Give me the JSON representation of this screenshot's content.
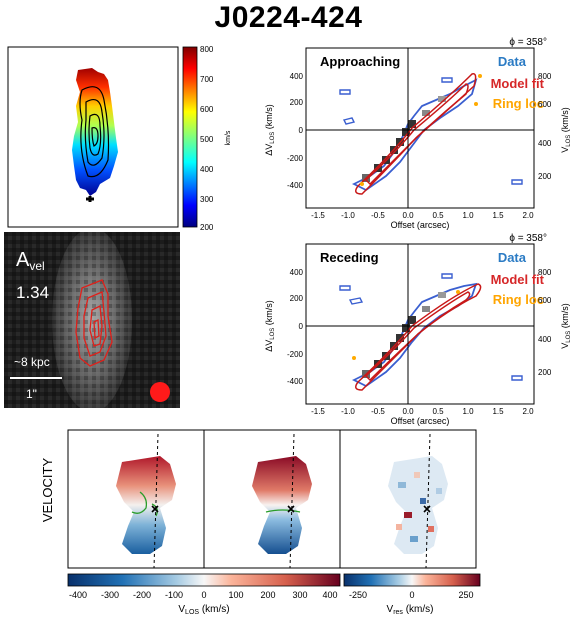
{
  "title": "J0224-424",
  "velocity_map": {
    "colorbar_ticks": [
      "800",
      "700",
      "600",
      "500",
      "400",
      "300",
      "200"
    ],
    "colorbar_unit": "km/s"
  },
  "image_panel": {
    "label_main": "A",
    "label_sub": "vel",
    "value": "1.34",
    "scale_kpc": "~8 kpc",
    "scale_arcsec": "1\""
  },
  "pv_panels": [
    {
      "phi": "ϕ = 358°",
      "name": "Approaching",
      "legend": [
        "Data",
        "Model fit",
        "Ring loc"
      ],
      "y_ticks": [
        "400",
        "200",
        "0",
        "-200",
        "-400"
      ],
      "y2_ticks": [
        "800",
        "600",
        "400",
        "200"
      ],
      "x_ticks": [
        "-1.5",
        "-1.0",
        "-0.5",
        "0.0",
        "0.5",
        "1.0",
        "1.5",
        "2.0"
      ],
      "xlabel": "Offset (arcsec)",
      "ylabel": "ΔV",
      "ylabel_sub": "LOS",
      "ylabel_unit": " (km/s)",
      "y2label": "V",
      "y2label_sub": "LOS",
      "y2label_unit": " (km/s)"
    },
    {
      "phi": "ϕ = 358°",
      "name": "Receding",
      "legend": [
        "Data",
        "Model fit",
        "Ring loc"
      ],
      "y_ticks": [
        "400",
        "200",
        "0",
        "-200",
        "-400"
      ],
      "y2_ticks": [
        "800",
        "600",
        "400",
        "200"
      ],
      "x_ticks": [
        "-1.5",
        "-1.0",
        "-0.5",
        "0.0",
        "0.5",
        "1.0",
        "1.5",
        "2.0"
      ],
      "xlabel": "Offset (arcsec)",
      "ylabel": "ΔV",
      "ylabel_sub": "LOS",
      "ylabel_unit": " (km/s)",
      "y2label": "V",
      "y2label_sub": "LOS",
      "y2label_unit": " (km/s)"
    }
  ],
  "legend_colors": {
    "data": "#1f77b4",
    "model": "#d62728",
    "ring": "#ff9f00"
  },
  "bottom": {
    "row_label": "VELOCITY",
    "cbar1_ticks": [
      "-400",
      "-300",
      "-200",
      "-100",
      "0",
      "100",
      "200",
      "300",
      "400"
    ],
    "cbar1_label": "V",
    "cbar1_sub": "LOS",
    "cbar1_unit": " (km/s)",
    "cbar2_ticks": [
      "-250",
      "0",
      "250"
    ],
    "cbar2_label": "V",
    "cbar2_sub": "res",
    "cbar2_unit": " (km/s)"
  }
}
